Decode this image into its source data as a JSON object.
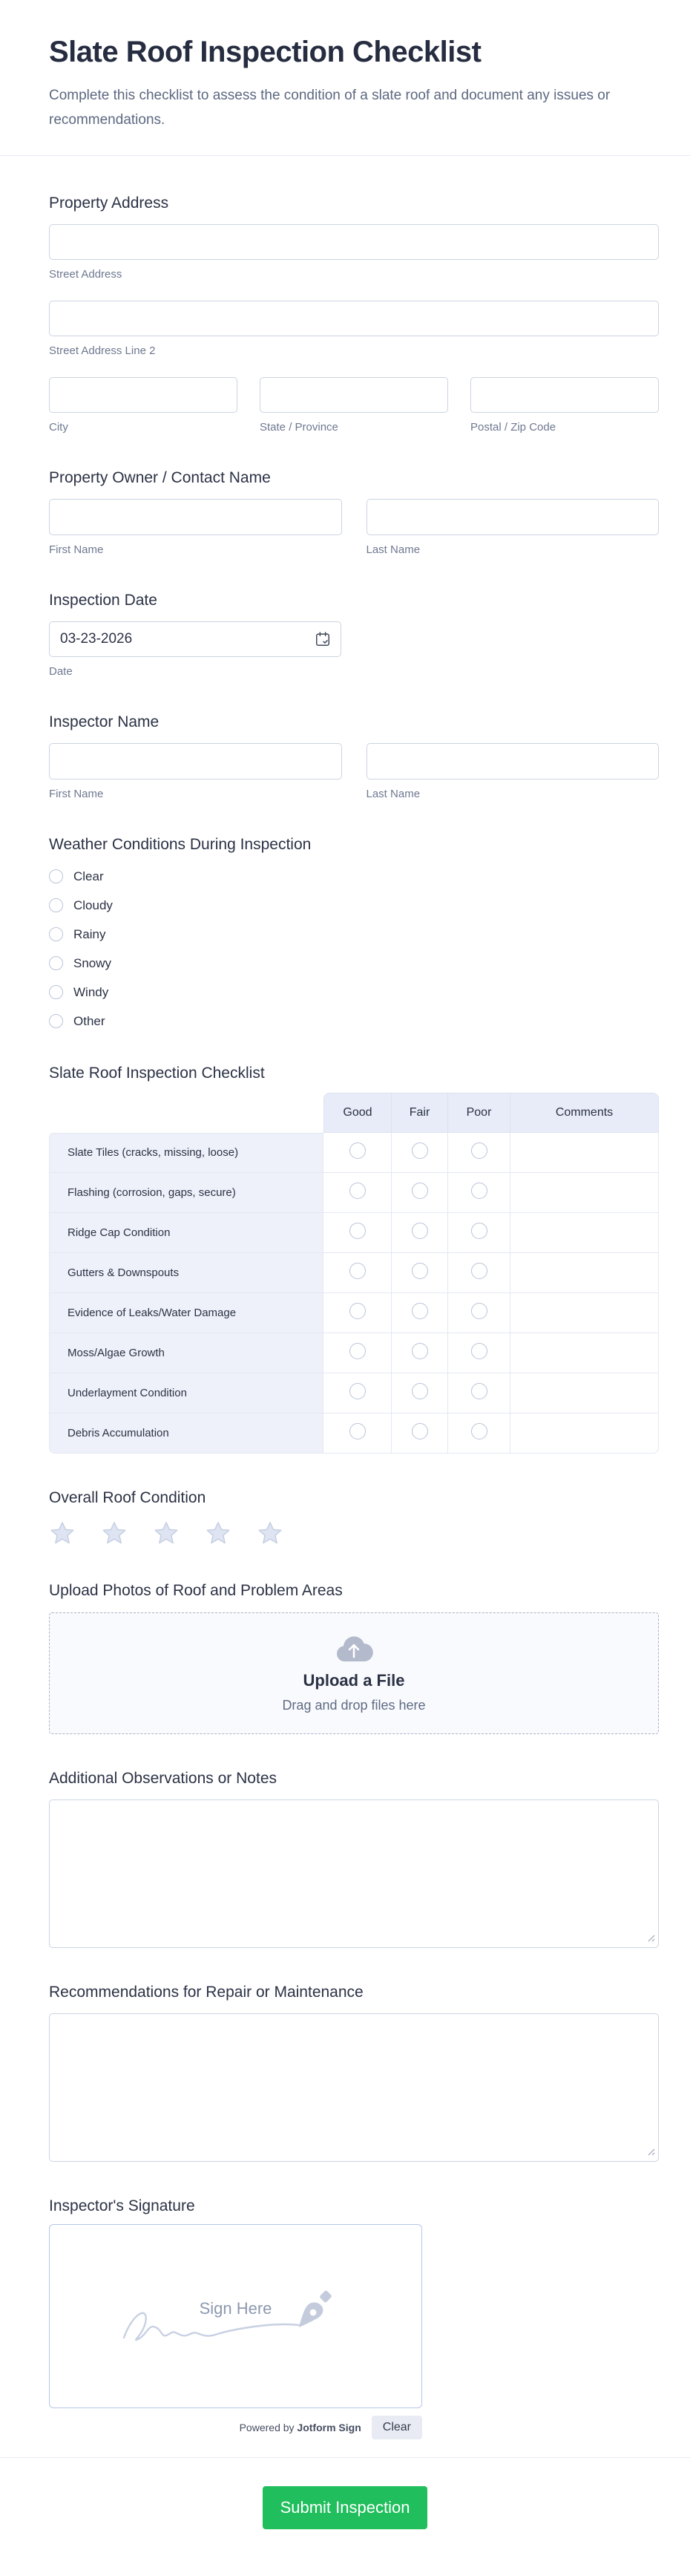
{
  "form": {
    "title": "Slate Roof Inspection Checklist",
    "subtitle": "Complete this checklist to assess the condition of a slate roof and document any issues or recommendations.",
    "submit_label": "Submit Inspection"
  },
  "property_address": {
    "label": "Property Address",
    "street": {
      "value": "",
      "sublabel": "Street Address"
    },
    "street2": {
      "value": "",
      "sublabel": "Street Address Line 2"
    },
    "city": {
      "value": "",
      "sublabel": "City"
    },
    "state": {
      "value": "",
      "sublabel": "State / Province"
    },
    "postal": {
      "value": "",
      "sublabel": "Postal / Zip Code"
    }
  },
  "owner": {
    "label": "Property Owner / Contact Name",
    "first": {
      "value": "",
      "sublabel": "First Name"
    },
    "last": {
      "value": "",
      "sublabel": "Last Name"
    }
  },
  "inspection_date": {
    "label": "Inspection Date",
    "value": "03-23-2026",
    "sublabel": "Date"
  },
  "inspector": {
    "label": "Inspector Name",
    "first": {
      "value": "",
      "sublabel": "First Name"
    },
    "last": {
      "value": "",
      "sublabel": "Last Name"
    }
  },
  "weather": {
    "label": "Weather Conditions During Inspection",
    "options": [
      "Clear",
      "Cloudy",
      "Rainy",
      "Snowy",
      "Windy",
      "Other"
    ]
  },
  "checklist": {
    "label": "Slate Roof Inspection Checklist",
    "columns": [
      "Good",
      "Fair",
      "Poor",
      "Comments"
    ],
    "rows": [
      "Slate Tiles (cracks, missing, loose)",
      "Flashing (corrosion, gaps, secure)",
      "Ridge Cap Condition",
      "Gutters & Downspouts",
      "Evidence of Leaks/Water Damage",
      "Moss/Algae Growth",
      "Underlayment Condition",
      "Debris Accumulation"
    ]
  },
  "overall_condition": {
    "label": "Overall Roof Condition",
    "star_count": 5,
    "selected": 0
  },
  "upload": {
    "label": "Upload Photos of Roof and Problem Areas",
    "button_text": "Upload a File",
    "hint": "Drag and drop files here"
  },
  "observations": {
    "label": "Additional Observations or Notes",
    "value": ""
  },
  "recommendations": {
    "label": "Recommendations for Repair or Maintenance",
    "value": ""
  },
  "signature": {
    "label": "Inspector's Signature",
    "placeholder": "Sign Here",
    "powered_prefix": "Powered by",
    "powered_brand": "Jotform Sign",
    "clear_label": "Clear"
  },
  "colors": {
    "accent_submit": "#20be5c",
    "title_text": "#262d40",
    "subtitle_text": "#5c6880",
    "sublabel_text": "#6e7890",
    "input_border": "#ccd3e1",
    "table_header_bg": "#e8ecf8",
    "table_label_bg": "#eef1f9",
    "star_fill": "#dfe4f2",
    "star_stroke": "#c5cee3",
    "signature_border": "#b5c7e8",
    "cloud_icon": "#b3bacc"
  }
}
